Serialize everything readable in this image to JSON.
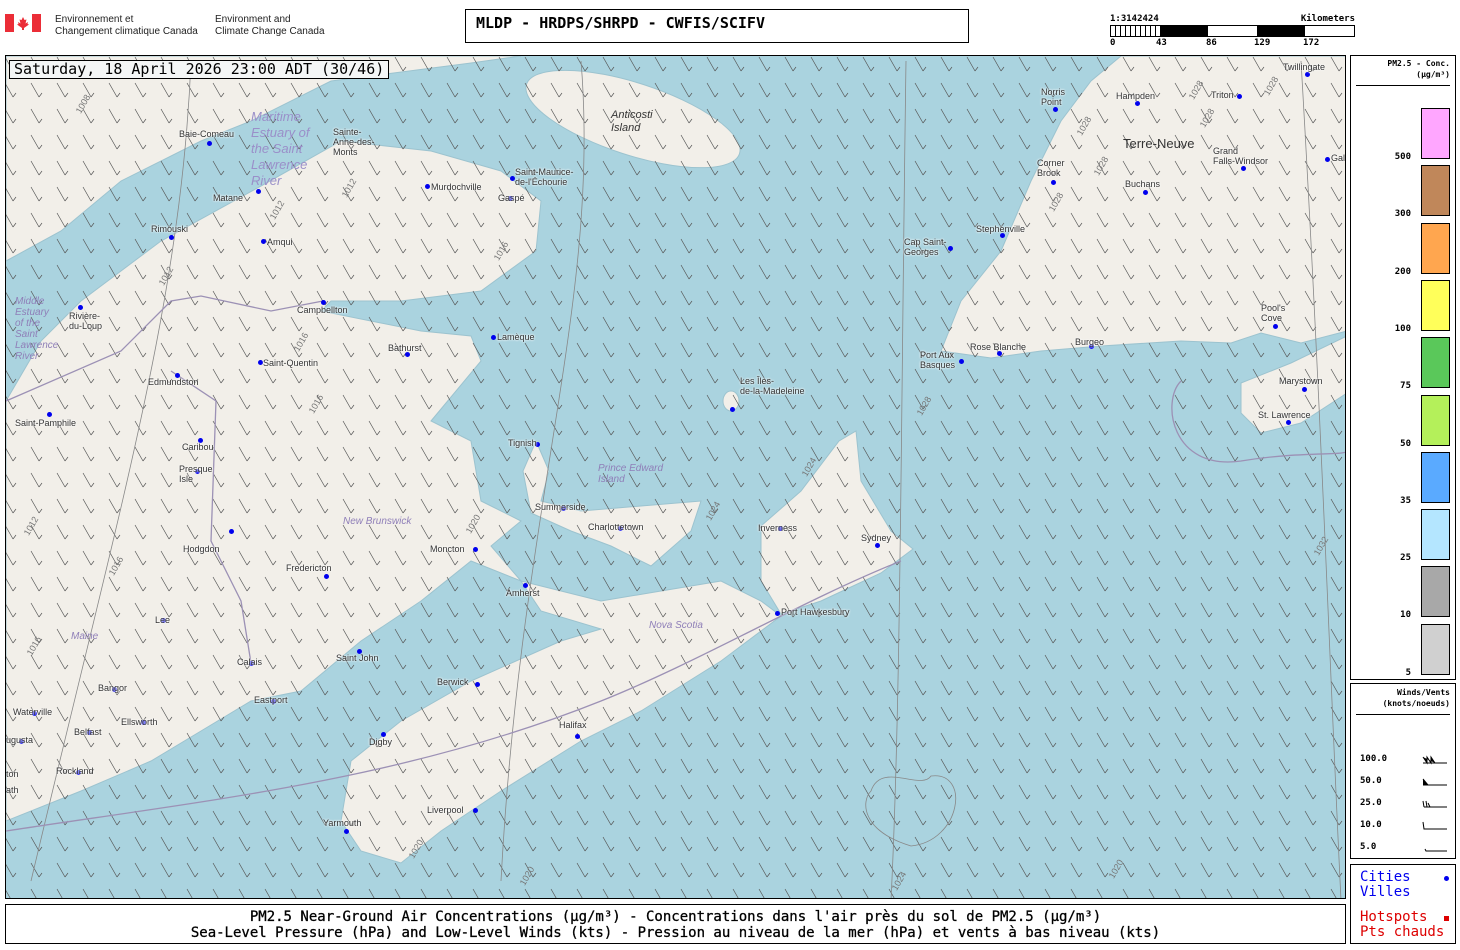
{
  "header": {
    "agency_fr_line1": "Environnement et",
    "agency_fr_line2": "Changement climatique Canada",
    "agency_en_line1": "Environment and",
    "agency_en_line2": "Climate Change Canada",
    "title": "MLDP - HRDPS/SHRPD - CWFIS/SCIFV"
  },
  "scale_bar": {
    "ratio": "1:3142424",
    "unit": "Kilometers",
    "ticks": [
      "0",
      "43",
      "86",
      "129",
      "172"
    ]
  },
  "map": {
    "datetime": "Saturday, 18 April 2026 23:00 ADT (30/46)",
    "water_color": "#aad3df",
    "land_color": "#f2efe9",
    "regions": [
      "Maritime\nEstuary of\nthe Saint\nLawrence\nRiver",
      "Middle\nEstuary\nof the\nSaint\nLawrence\nRiver",
      "New Brunswick",
      "Prince Edward\nIsland",
      "Nova Scotia",
      "Maine",
      "Anticosti\nIsland",
      "Terre-Neuve"
    ],
    "cities": [
      "Baie-Comeau",
      "Sainte-\nAnne-des-\nMonts",
      "Matane",
      "Murdochville",
      "Saint-Maurice-\nde-l'Échourie",
      "Gaspé",
      "Rimouski",
      "Amqui",
      "Rivière-\ndu-Loup",
      "Campbellton",
      "Lamèque",
      "Bathurst",
      "Saint-Quentin",
      "Edmundston",
      "Saint-Pamphile",
      "Caribou",
      "Presque\nIsle",
      "Tignish",
      "Summerside",
      "Charlottetown",
      "Moncton",
      "Fredericton",
      "Hodgdon",
      "Amherst",
      "Inverness",
      "Sydney",
      "Port Hawkesbury",
      "Lee",
      "Calais",
      "Saint John",
      "Eastport",
      "Bangor",
      "Berwick",
      "Waterville",
      "Ellsworth",
      "Belfast",
      "ugusta",
      "Digby",
      "Halifax",
      "Rockland",
      "Liverpool",
      "Yarmouth",
      "Les Îles-\nde-la-Madeleine",
      "Cap Saint-\nGeorges",
      "Stephenville",
      "Corner\nBrook",
      "Norris\nPoint",
      "Hampden",
      "Triton",
      "Twillingate",
      "Buchans",
      "Grand\nFalls-Windsor",
      "Gal",
      "Port Aux\nBasques",
      "Rose Blanche",
      "Burgeo",
      "Pool's\nCove",
      "Marystown",
      "St. Lawrence",
      "ton",
      "ath"
    ],
    "isobars": [
      "1008",
      "1012",
      "1012",
      "1012",
      "1016",
      "1016",
      "1016",
      "1020",
      "1020",
      "1020",
      "1024",
      "1024",
      "1024",
      "1028",
      "1028",
      "1028",
      "1028",
      "1028",
      "1028",
      "1032",
      "1028",
      "1012",
      "1016",
      "1016",
      "1020"
    ]
  },
  "pm_legend": {
    "title": "PM2.5 - Conc.",
    "unit": "(µg/m³)",
    "levels": [
      {
        "value": "500",
        "color": "#ffa6ff"
      },
      {
        "value": "300",
        "color": "#c0875a"
      },
      {
        "value": "200",
        "color": "#ffa64f"
      },
      {
        "value": "100",
        "color": "#ffff5a"
      },
      {
        "value": "75",
        "color": "#5ac85a"
      },
      {
        "value": "50",
        "color": "#b4f05a"
      },
      {
        "value": "35",
        "color": "#5aaaff"
      },
      {
        "value": "25",
        "color": "#b4e6ff"
      },
      {
        "value": "10",
        "color": "#a8a8a8"
      },
      {
        "value": "5",
        "color": "#d0d0d0"
      }
    ]
  },
  "wind_legend": {
    "title": "Winds/Vents",
    "unit": "(knots/noeuds)",
    "speeds": [
      "100.0",
      "50.0",
      "25.0",
      "10.0",
      "5.0"
    ]
  },
  "symbols_legend": {
    "cities_en": "Cities",
    "cities_fr": "Villes",
    "hotspots_en": "Hotspots",
    "hotspots_fr": "Pts chauds",
    "city_color": "#0000ee",
    "hotspot_color": "#dd0000"
  },
  "footer": {
    "line1": "PM2.5 Near-Ground Air Concentrations (µg/m³) - Concentrations dans l'air près du sol de PM2.5 (µg/m³)",
    "line2": "Sea-Level Pressure (hPa) and Low-Level Winds (kts) - Pression au niveau de la mer (hPa) et vents à bas niveau (kts)"
  }
}
